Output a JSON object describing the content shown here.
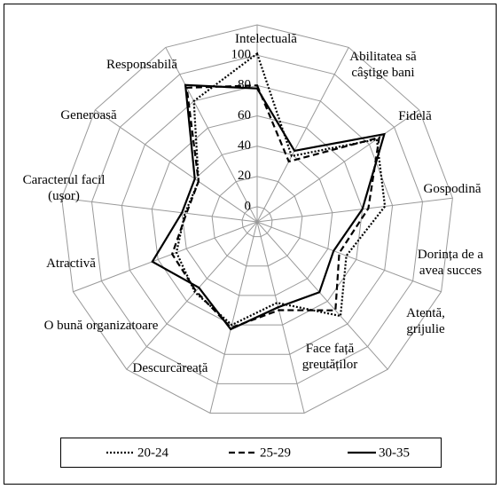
{
  "chart_data": {
    "type": "radar",
    "categories": [
      "Intelectuală",
      "Abilitatea să câştige bani",
      "Fidelă",
      "Gospodină",
      "Dorința de a avea  succes",
      "Atentă, grijulie",
      "Face față greutăților",
      "Descurcăreață",
      "O bună organizatoare",
      "Atractivă",
      "Caracterul facil (uşor)",
      "Generoasă",
      "Responsabilă"
    ],
    "series": [
      {
        "name": "20-24",
        "color": "#000000",
        "line_style": "dotted",
        "values": [
          101,
          39,
          86,
          75,
          53,
          73,
          45,
          60,
          52,
          47,
          38,
          37,
          80
        ]
      },
      {
        "name": "25-29",
        "color": "#000000",
        "line_style": "dashed",
        "values": [
          80,
          35,
          88,
          64,
          48,
          68,
          50,
          62,
          51,
          50,
          37,
          37,
          90
        ]
      },
      {
        "name": "30-35",
        "color": "#000000",
        "line_style": "solid",
        "values": [
          78,
          43,
          92,
          60,
          44,
          52,
          48,
          63,
          48,
          64,
          40,
          40,
          92
        ]
      }
    ],
    "ylim": [
      -10,
      120
    ],
    "yticks": [
      0,
      20,
      40,
      60,
      80,
      100
    ],
    "grid": true,
    "legend": "bottom"
  }
}
